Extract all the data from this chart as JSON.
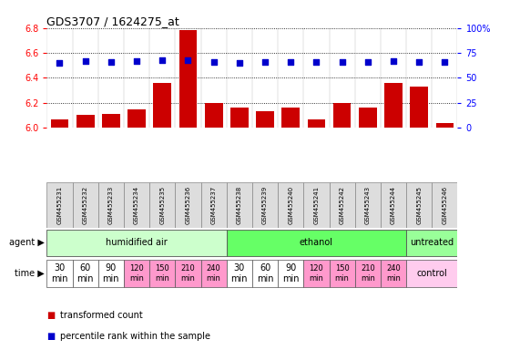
{
  "title": "GDS3707 / 1624275_at",
  "samples": [
    "GSM455231",
    "GSM455232",
    "GSM455233",
    "GSM455234",
    "GSM455235",
    "GSM455236",
    "GSM455237",
    "GSM455238",
    "GSM455239",
    "GSM455240",
    "GSM455241",
    "GSM455242",
    "GSM455243",
    "GSM455244",
    "GSM455245",
    "GSM455246"
  ],
  "transformed_count": [
    6.07,
    6.1,
    6.11,
    6.15,
    6.36,
    6.78,
    6.2,
    6.16,
    6.13,
    6.16,
    6.07,
    6.2,
    6.16,
    6.36,
    6.33,
    6.04
  ],
  "percentile_rank": [
    65,
    67,
    66,
    67,
    68,
    68,
    66,
    65,
    66,
    66,
    66,
    66,
    66,
    67,
    66,
    66
  ],
  "ylim_left": [
    6.0,
    6.8
  ],
  "ylim_right": [
    0,
    100
  ],
  "yticks_left": [
    6.0,
    6.2,
    6.4,
    6.6,
    6.8
  ],
  "yticks_right": [
    0,
    25,
    50,
    75,
    100
  ],
  "ytick_labels_right": [
    "0",
    "25",
    "50",
    "75",
    "100%"
  ],
  "bar_color": "#cc0000",
  "dot_color": "#0000cc",
  "agent_groups": [
    {
      "label": "humidified air",
      "start": 0,
      "end": 6,
      "color": "#ccffcc"
    },
    {
      "label": "ethanol",
      "start": 7,
      "end": 13,
      "color": "#66ff66"
    },
    {
      "label": "untreated",
      "start": 14,
      "end": 15,
      "color": "#99ff99"
    }
  ],
  "time_texts": [
    "30\nmin",
    "60\nmin",
    "90\nmin",
    "120\nmin",
    "150\nmin",
    "210\nmin",
    "240\nmin",
    "30\nmin",
    "60\nmin",
    "90\nmin",
    "120\nmin",
    "150\nmin",
    "210\nmin",
    "240\nmin",
    "control"
  ],
  "time_colors": [
    "#ffffff",
    "#ffffff",
    "#ffffff",
    "#ff99cc",
    "#ff99cc",
    "#ff99cc",
    "#ff99cc",
    "#ffffff",
    "#ffffff",
    "#ffffff",
    "#ff99cc",
    "#ff99cc",
    "#ff99cc",
    "#ff99cc",
    "#ffccee"
  ],
  "time_font_sizes": [
    7,
    7,
    7,
    6,
    6,
    6,
    6,
    7,
    7,
    7,
    6,
    6,
    6,
    6,
    7
  ],
  "legend_bar_label": "transformed count",
  "legend_dot_label": "percentile rank within the sample",
  "background_color": "#ffffff"
}
